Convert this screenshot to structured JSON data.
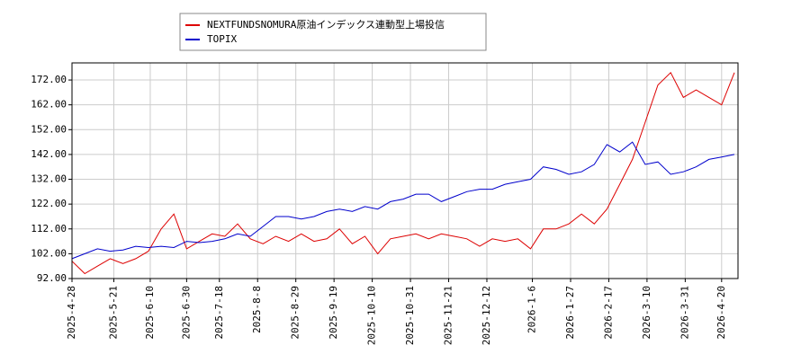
{
  "chart_data": {
    "type": "line",
    "x": [
      "2025-4-28",
      "2025-5-5",
      "2025-5-12",
      "2025-5-19",
      "2025-5-26",
      "2025-6-2",
      "2025-6-9",
      "2025-6-16",
      "2025-6-23",
      "2025-6-30",
      "2025-7-7",
      "2025-7-14",
      "2025-7-21",
      "2025-7-28",
      "2025-8-4",
      "2025-8-11",
      "2025-8-18",
      "2025-8-25",
      "2025-9-1",
      "2025-9-8",
      "2025-9-15",
      "2025-9-22",
      "2025-9-29",
      "2025-10-6",
      "2025-10-13",
      "2025-10-20",
      "2025-10-27",
      "2025-11-3",
      "2025-11-10",
      "2025-11-17",
      "2025-11-24",
      "2025-12-1",
      "2025-12-8",
      "2025-12-15",
      "2025-12-22",
      "2025-12-29",
      "2026-1-5",
      "2026-1-12",
      "2026-1-19",
      "2026-1-26",
      "2026-2-2",
      "2026-2-9",
      "2026-2-16",
      "2026-2-23",
      "2026-3-2",
      "2026-3-9",
      "2026-3-16",
      "2026-3-23",
      "2026-3-30",
      "2026-4-6",
      "2026-4-13",
      "2026-4-20",
      "2026-4-27"
    ],
    "series": [
      {
        "name": "NEXTFUNDSNOMURA原油インデックス連動型上場投信",
        "color": "#dd0000",
        "values": [
          99,
          94,
          97,
          100,
          98,
          100,
          103,
          112,
          118,
          104,
          107,
          110,
          109,
          114,
          108,
          106,
          109,
          107,
          110,
          107,
          108,
          112,
          106,
          109,
          102,
          108,
          109,
          110,
          108,
          110,
          109,
          108,
          105,
          108,
          107,
          108,
          104,
          112,
          112,
          114,
          118,
          114,
          120,
          130,
          140,
          155,
          170,
          175,
          165,
          168,
          165,
          162,
          175
        ]
      },
      {
        "name": "TOPIX",
        "color": "#0000cc",
        "values": [
          100,
          102,
          104,
          103,
          103.5,
          105,
          104.5,
          105,
          104.5,
          107,
          106.5,
          107,
          108,
          110,
          109,
          113,
          117,
          117,
          116,
          117,
          119,
          120,
          119,
          121,
          120,
          123,
          124,
          126,
          126,
          123,
          125,
          127,
          128,
          128,
          130,
          131,
          132,
          137,
          136,
          134,
          135,
          138,
          146,
          143,
          147,
          138,
          139,
          134,
          135,
          137,
          140,
          141,
          142
        ]
      }
    ],
    "xlim": [
      "2025-4-28",
      "2026-4-29"
    ],
    "xticks": [
      "2025-4-28",
      "2025-5-21",
      "2025-6-10",
      "2025-6-30",
      "2025-7-18",
      "2025-8-8",
      "2025-8-29",
      "2025-9-19",
      "2025-10-10",
      "2025-10-31",
      "2025-11-21",
      "2025-12-12",
      "2026-1-6",
      "2026-1-27",
      "2026-2-17",
      "2026-3-10",
      "2026-3-31",
      "2026-4-20"
    ],
    "ylim": [
      92,
      178.9
    ],
    "yticks": [
      {
        "value": 92,
        "label": "92.00"
      },
      {
        "value": 102,
        "label": "102.00"
      },
      {
        "value": 112,
        "label": "112.00"
      },
      {
        "value": 122,
        "label": "122.00"
      },
      {
        "value": 132,
        "label": "132.00"
      },
      {
        "value": 142,
        "label": "142.00"
      },
      {
        "value": 152,
        "label": "152.00"
      },
      {
        "value": 162,
        "label": "162.00"
      },
      {
        "value": 172,
        "label": "172.00"
      }
    ],
    "grid": true
  }
}
